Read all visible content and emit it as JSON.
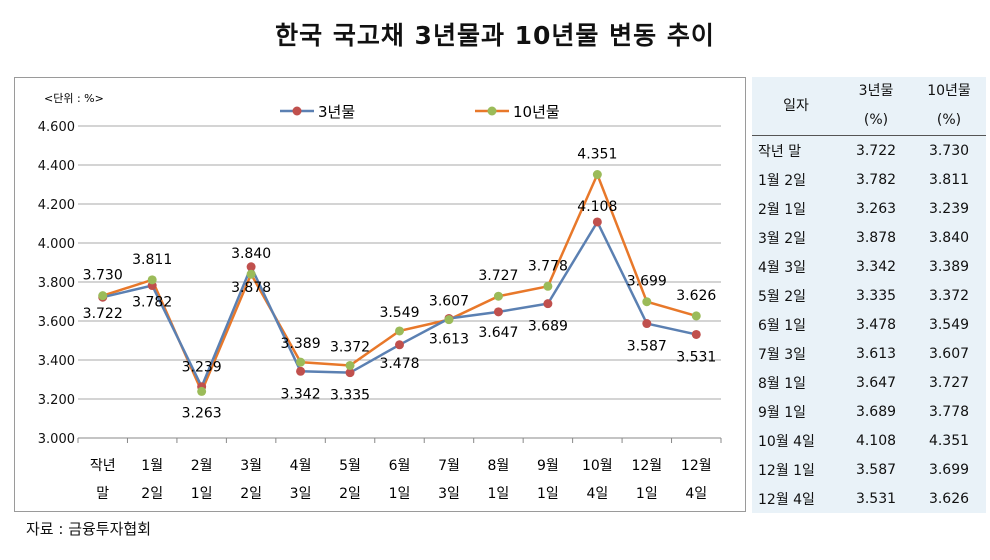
{
  "title": "한국 국고채 3년물과 10년물 변동 추이",
  "source": "자료 : 금융투자협회",
  "table": {
    "headers": [
      "일자",
      "3년물\n(%)",
      "10년물\n(%)"
    ],
    "rows": [
      [
        "작년 말",
        "3.722",
        "3.730"
      ],
      [
        "1월 2일",
        "3.782",
        "3.811"
      ],
      [
        "2월 1일",
        "3.263",
        "3.239"
      ],
      [
        "3월 2일",
        "3.878",
        "3.840"
      ],
      [
        "4월 3일",
        "3.342",
        "3.389"
      ],
      [
        "5월 2일",
        "3.335",
        "3.372"
      ],
      [
        "6월 1일",
        "3.478",
        "3.549"
      ],
      [
        "7월 3일",
        "3.613",
        "3.607"
      ],
      [
        "8월 1일",
        "3.647",
        "3.727"
      ],
      [
        "9월 1일",
        "3.689",
        "3.778"
      ],
      [
        "10월 4일",
        "4.108",
        "4.351"
      ],
      [
        "12월 1일",
        "3.587",
        "3.699"
      ],
      [
        "12월 4일",
        "3.531",
        "3.626"
      ]
    ]
  },
  "chart_data": {
    "type": "line",
    "unit_label": "<단위 : %>",
    "categories": [
      [
        "작년",
        "말"
      ],
      [
        "1월",
        "2일"
      ],
      [
        "2월",
        "1일"
      ],
      [
        "3월",
        "2일"
      ],
      [
        "4월",
        "3일"
      ],
      [
        "5월",
        "2일"
      ],
      [
        "6월",
        "1일"
      ],
      [
        "7월",
        "3일"
      ],
      [
        "8월",
        "1일"
      ],
      [
        "9월",
        "1일"
      ],
      [
        "10월",
        "4일"
      ],
      [
        "12월",
        "1일"
      ],
      [
        "12월",
        "4일"
      ]
    ],
    "ylim": [
      3.0,
      4.6
    ],
    "yticks": [
      "3.000",
      "3.200",
      "3.400",
      "3.600",
      "3.800",
      "4.000",
      "4.200",
      "4.400",
      "4.600"
    ],
    "grid": true,
    "legend_position": "top",
    "series": [
      {
        "name": "3년물",
        "line_color": "#5b80b2",
        "marker_color": "#c0504d",
        "values": [
          3.722,
          3.782,
          3.263,
          3.878,
          3.342,
          3.335,
          3.478,
          3.613,
          3.647,
          3.689,
          4.108,
          3.587,
          3.531
        ],
        "labels": [
          "3.722",
          "3.782",
          "3.263",
          "3.878",
          "3.342",
          "3.335",
          "3.478",
          "3.613",
          "3.647",
          "3.689",
          "4.108",
          "3.587",
          "3.531"
        ]
      },
      {
        "name": "10년물",
        "line_color": "#e8782a",
        "marker_color": "#9bbb59",
        "values": [
          3.73,
          3.811,
          3.239,
          3.84,
          3.389,
          3.372,
          3.549,
          3.607,
          3.727,
          3.778,
          4.351,
          3.699,
          3.626
        ],
        "labels": [
          "3.730",
          "3.811",
          "3.239",
          "3.840",
          "3.389",
          "3.372",
          "3.549",
          "3.607",
          "3.727",
          "3.778",
          "4.351",
          "3.699",
          "3.626"
        ]
      }
    ]
  }
}
